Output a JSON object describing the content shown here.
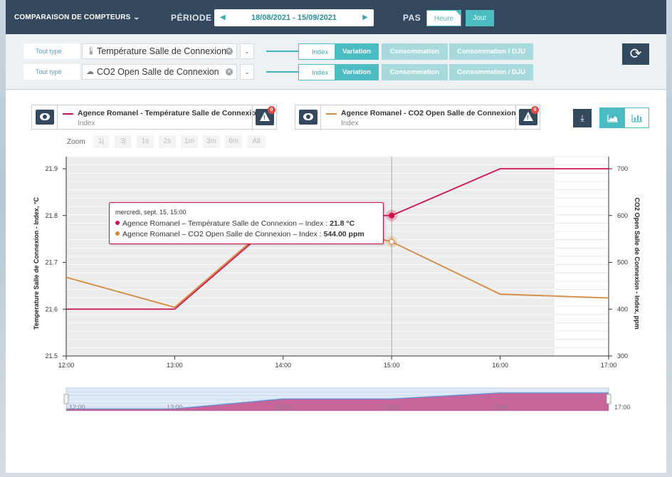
{
  "header": {
    "title": "COMPARAISON DE COMPTEURS",
    "period_label": "PÉRIODE",
    "period_value": "18/08/2021 - 15/09/2021",
    "step_label": "PAS",
    "step_options": [
      "Heure",
      "Jour"
    ],
    "step_selected": "Heure"
  },
  "selectors": [
    {
      "type_label": "Tout type",
      "meter": "Température Salle de Connexion",
      "icon": "thermometer-icon",
      "modes": [
        "Index",
        "Variation",
        "Consommation",
        "Consommation / DJU"
      ],
      "mode_selected": "Index"
    },
    {
      "type_label": "Tout type",
      "meter": "CO2 Open Salle de Connexion",
      "icon": "cloud-icon",
      "modes": [
        "Index",
        "Variation",
        "Consommation",
        "Consommation / DJU"
      ],
      "mode_selected": "Index"
    }
  ],
  "legend": [
    {
      "name": "Agence Romanel - Température Salle de Connexion",
      "sub": "Index",
      "color": "#d1134a",
      "alerts": "0"
    },
    {
      "name": "Agence Romanel - CO2 Open Salle de Connexion",
      "sub": "Index",
      "color": "#d4893c",
      "alerts": "0"
    }
  ],
  "zoom": {
    "label": "Zoom",
    "buttons": [
      "1j",
      "3j",
      "1s",
      "2s",
      "1m",
      "3m",
      "6m",
      "All"
    ]
  },
  "tooltip": {
    "date": "mercredi, sept. 15, 15:00",
    "row1_label": "Agence Romanel – Température Salle de Connexion – Index : ",
    "row1_value": "21.8 °C",
    "row2_label": "Agence Romanel – CO2 Open Salle de Connexion – Index : ",
    "row2_value": "544.00 ppm"
  },
  "chart_data": {
    "type": "line",
    "x": [
      "12:00",
      "13:00",
      "14:00",
      "15:00",
      "16:00",
      "17:00"
    ],
    "ylabel_left": "Temperature Salle de Connexion - Index,  °C",
    "ylabel_right": "CO2 Open Salle de Connexion - Index, ppm",
    "ylim_left": [
      21.5,
      21.9
    ],
    "yticks_left": [
      "21.5",
      "21.6",
      "21.7",
      "21.8",
      "21.9"
    ],
    "ylim_right": [
      300,
      700
    ],
    "yticks_right": [
      "300",
      "400",
      "500",
      "600",
      "700"
    ],
    "series": [
      {
        "name": "Agence Romanel - Température Salle de Connexion",
        "axis": "left",
        "color": "#d1134a",
        "x_hours": [
          12,
          13,
          14,
          15,
          16,
          17
        ],
        "values": [
          21.6,
          21.6,
          21.8,
          21.8,
          21.9,
          21.9
        ]
      },
      {
        "name": "Agence Romanel - CO2 Open Salle de Connexion",
        "axis": "right",
        "color": "#d4893c",
        "x_hours": [
          12,
          13,
          14,
          15,
          16,
          17
        ],
        "values": [
          468,
          404,
          604,
          544,
          432,
          424
        ]
      }
    ],
    "highlight_hour": 15,
    "navigator": {
      "x": [
        "12:00",
        "13:00",
        "14:00",
        "15:00",
        "16:00",
        "17:00"
      ],
      "fill_color": "#c7659a",
      "line_color": "#5b95d8",
      "values": [
        0.1,
        0.1,
        0.6,
        0.6,
        0.9,
        0.9
      ]
    }
  }
}
